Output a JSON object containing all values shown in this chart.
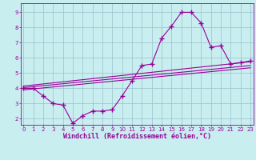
{
  "xlabel": "Windchill (Refroidissement éolien,°C)",
  "bg_color": "#c8eef0",
  "line_color": "#990099",
  "grid_color": "#9bbfcc",
  "x_ticks": [
    0,
    1,
    2,
    3,
    4,
    5,
    6,
    7,
    8,
    9,
    10,
    11,
    12,
    13,
    14,
    15,
    16,
    17,
    18,
    19,
    20,
    21,
    22,
    23
  ],
  "y_ticks": [
    2,
    3,
    4,
    5,
    6,
    7,
    8,
    9
  ],
  "xlim": [
    -0.3,
    23.3
  ],
  "ylim": [
    1.6,
    9.6
  ],
  "line1_x": [
    0,
    1,
    2,
    3,
    4,
    5,
    6,
    7,
    8,
    9,
    10,
    11,
    12,
    13,
    14,
    15,
    16,
    17,
    18,
    19,
    20,
    21,
    22,
    23
  ],
  "line1_y": [
    4.0,
    4.0,
    3.5,
    3.0,
    2.9,
    1.7,
    2.2,
    2.5,
    2.5,
    2.6,
    3.5,
    4.5,
    5.5,
    5.6,
    7.3,
    8.1,
    9.0,
    9.0,
    8.3,
    6.7,
    6.8,
    5.6,
    5.7,
    5.8
  ],
  "line2_x": [
    0,
    23
  ],
  "line2_y": [
    4.05,
    5.5
  ],
  "line3_x": [
    0,
    23
  ],
  "line3_y": [
    4.15,
    5.75
  ],
  "line4_x": [
    0,
    23
  ],
  "line4_y": [
    3.9,
    5.35
  ],
  "marker_size": 2.5,
  "line_width": 0.8,
  "tick_fontsize": 5,
  "xlabel_fontsize": 6
}
